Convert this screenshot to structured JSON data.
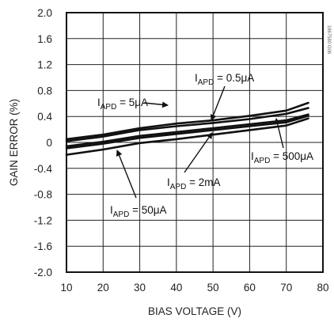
{
  "chart_data": {
    "type": "line",
    "xlabel": "BIAS VOLTAGE (V)",
    "ylabel": "GAIN ERROR (%)",
    "xlim": [
      10,
      80
    ],
    "ylim": [
      -2.0,
      2.0
    ],
    "x_ticks": [
      "10",
      "20",
      "30",
      "40",
      "50",
      "60",
      "70",
      "80"
    ],
    "y_ticks": [
      "2.0",
      "1.6",
      "1.2",
      "0.8",
      "0.4",
      "0",
      "-0.4",
      "-0.8",
      "-1.2",
      "-1.6",
      "-2.0"
    ],
    "grid": true,
    "watermark": "1867580 G06",
    "series": [
      {
        "name": "IAPD = 5μA",
        "x": [
          10,
          20,
          30,
          40,
          50,
          60,
          70,
          76
        ],
        "y": [
          0.05,
          0.12,
          0.22,
          0.29,
          0.34,
          0.41,
          0.49,
          0.61
        ]
      },
      {
        "name": "IAPD = 0.5μA",
        "x": [
          10,
          20,
          30,
          40,
          50,
          60,
          70,
          76
        ],
        "y": [
          0.02,
          0.09,
          0.19,
          0.25,
          0.3,
          0.36,
          0.44,
          0.53
        ]
      },
      {
        "name": "IAPD = 2mA",
        "x": [
          10,
          20,
          30,
          40,
          50,
          60,
          70,
          76
        ],
        "y": [
          -0.06,
          0.01,
          0.1,
          0.16,
          0.22,
          0.28,
          0.34,
          0.43
        ]
      },
      {
        "name": "IAPD = 500μA",
        "x": [
          10,
          20,
          30,
          40,
          50,
          60,
          70,
          76
        ],
        "y": [
          -0.09,
          -0.02,
          0.07,
          0.13,
          0.19,
          0.25,
          0.31,
          0.41
        ]
      },
      {
        "name": "IAPD = 50μA",
        "x": [
          10,
          20,
          30,
          40,
          50,
          60,
          70,
          76
        ],
        "y": [
          -0.19,
          -0.11,
          -0.01,
          0.05,
          0.12,
          0.19,
          0.26,
          0.37
        ]
      }
    ],
    "annotations": [
      {
        "main": "I",
        "sub": "APD",
        "rest": " = 0.5μA"
      },
      {
        "main": "I",
        "sub": "APD",
        "rest": " = 5μA"
      },
      {
        "main": "I",
        "sub": "APD",
        "rest": " = 500μA"
      },
      {
        "main": "I",
        "sub": "APD",
        "rest": " = 2mA"
      },
      {
        "main": "I",
        "sub": "APD",
        "rest": " = 50μA"
      }
    ]
  }
}
